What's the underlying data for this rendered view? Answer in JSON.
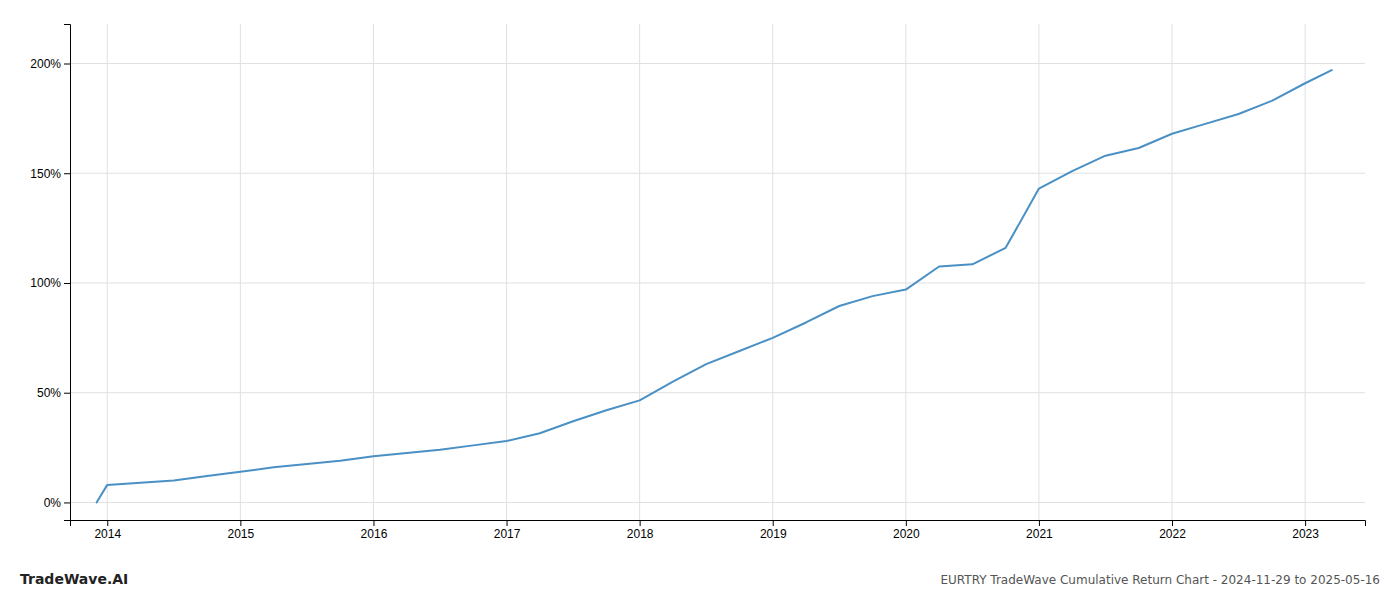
{
  "chart_data": {
    "type": "line",
    "title": "EURTRY TradeWave Cumulative Return Chart - 2024-11-29 to 2025-05-16",
    "annotations": [
      "TradeWave.AI"
    ],
    "color": "#4a90c4",
    "x": [
      2013.92,
      2014.0,
      2014.25,
      2014.5,
      2014.75,
      2015.0,
      2015.25,
      2015.5,
      2015.75,
      2016.0,
      2016.25,
      2016.5,
      2016.75,
      2017.0,
      2017.25,
      2017.5,
      2017.75,
      2018.0,
      2018.25,
      2018.5,
      2018.75,
      2019.0,
      2019.25,
      2019.5,
      2019.75,
      2020.0,
      2020.25,
      2020.5,
      2020.75,
      2021.0,
      2021.25,
      2021.5,
      2021.75,
      2022.0,
      2022.25,
      2022.5,
      2022.75,
      2023.0,
      2023.2
    ],
    "values": [
      0.0,
      8.0,
      9.0,
      10.0,
      12.0,
      14.0,
      16.0,
      17.5,
      19.0,
      21.0,
      22.5,
      24.0,
      26.0,
      28.0,
      31.5,
      37.0,
      42.0,
      46.5,
      55.0,
      63.0,
      69.0,
      75.0,
      82.0,
      89.5,
      94.0,
      97.0,
      107.5,
      108.5,
      116.0,
      143.0,
      151.0,
      158.0,
      161.5,
      168.0,
      172.5,
      177.0,
      183.0,
      191.0,
      197.0
    ],
    "xlim": [
      2013.72,
      2023.45
    ],
    "ylim": [
      -8,
      218
    ],
    "xticks": [
      2014,
      2015,
      2016,
      2017,
      2018,
      2019,
      2020,
      2021,
      2022,
      2023
    ],
    "yticks": [
      {
        "value": 0,
        "label": "0%"
      },
      {
        "value": 50,
        "label": "50%"
      },
      {
        "value": 100,
        "label": "100%"
      },
      {
        "value": 150,
        "label": "150%"
      },
      {
        "value": 200,
        "label": "200%"
      }
    ],
    "grid": true
  }
}
